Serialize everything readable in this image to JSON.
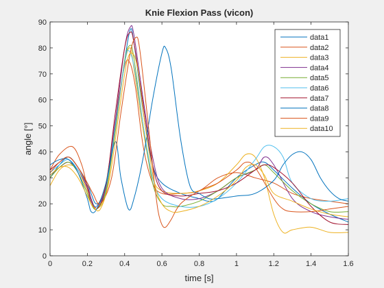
{
  "chart_data": {
    "type": "line",
    "title": "Knie Flexion Pass (vicon)",
    "xlabel": "time [s]",
    "ylabel": "angle [°]",
    "xlim": [
      0,
      1.6
    ],
    "ylim": [
      0,
      90
    ],
    "xticks": [
      0,
      0.2,
      0.4,
      0.6,
      0.8,
      1,
      1.2,
      1.4,
      1.6
    ],
    "yticks": [
      0,
      10,
      20,
      30,
      40,
      50,
      60,
      70,
      80,
      90
    ],
    "xtick_labels": [
      "0",
      "0.2",
      "0.4",
      "0.6",
      "0.8",
      "1",
      "1.2",
      "1.4",
      "1.6"
    ],
    "ytick_labels": [
      "0",
      "10",
      "20",
      "30",
      "40",
      "50",
      "60",
      "70",
      "80",
      "90"
    ],
    "grid": false,
    "legend_position": "top-right",
    "series": [
      {
        "name": "data1",
        "color": "#0072BD",
        "points": [
          [
            0,
            30
          ],
          [
            0.05,
            35
          ],
          [
            0.1,
            38
          ],
          [
            0.15,
            34
          ],
          [
            0.2,
            28
          ],
          [
            0.22,
            24
          ],
          [
            0.25,
            20
          ],
          [
            0.3,
            25
          ],
          [
            0.35,
            50
          ],
          [
            0.4,
            75
          ],
          [
            0.43,
            87
          ],
          [
            0.45,
            82
          ],
          [
            0.5,
            55
          ],
          [
            0.55,
            35
          ],
          [
            0.6,
            28
          ],
          [
            0.7,
            24
          ],
          [
            0.8,
            22
          ],
          [
            0.85,
            21
          ],
          [
            0.9,
            22
          ],
          [
            1.0,
            30
          ],
          [
            1.1,
            35
          ],
          [
            1.15,
            36
          ],
          [
            1.2,
            33
          ],
          [
            1.3,
            26
          ],
          [
            1.4,
            20
          ],
          [
            1.5,
            16
          ],
          [
            1.6,
            13
          ]
        ]
      },
      {
        "name": "data2",
        "color": "#D95319",
        "points": [
          [
            0,
            33
          ],
          [
            0.05,
            39
          ],
          [
            0.12,
            42
          ],
          [
            0.17,
            35
          ],
          [
            0.2,
            26
          ],
          [
            0.22,
            20
          ],
          [
            0.25,
            19
          ],
          [
            0.3,
            28
          ],
          [
            0.35,
            52
          ],
          [
            0.4,
            73
          ],
          [
            0.43,
            74
          ],
          [
            0.46,
            64
          ],
          [
            0.5,
            42
          ],
          [
            0.55,
            28
          ],
          [
            0.6,
            24
          ],
          [
            0.7,
            24
          ],
          [
            0.8,
            25
          ],
          [
            0.9,
            30
          ],
          [
            1.0,
            32
          ],
          [
            1.1,
            30
          ],
          [
            1.2,
            28
          ],
          [
            1.3,
            24
          ],
          [
            1.4,
            22
          ],
          [
            1.5,
            21
          ],
          [
            1.6,
            20
          ]
        ]
      },
      {
        "name": "data3",
        "color": "#EDB120",
        "points": [
          [
            0,
            27
          ],
          [
            0.05,
            33
          ],
          [
            0.1,
            35
          ],
          [
            0.15,
            33
          ],
          [
            0.2,
            25
          ],
          [
            0.22,
            21
          ],
          [
            0.25,
            18
          ],
          [
            0.3,
            24
          ],
          [
            0.35,
            48
          ],
          [
            0.4,
            74
          ],
          [
            0.43,
            80
          ],
          [
            0.45,
            72
          ],
          [
            0.5,
            48
          ],
          [
            0.55,
            30
          ],
          [
            0.6,
            25
          ],
          [
            0.7,
            24
          ],
          [
            0.8,
            25
          ],
          [
            0.9,
            28
          ],
          [
            1.0,
            35
          ],
          [
            1.05,
            39
          ],
          [
            1.1,
            38
          ],
          [
            1.15,
            30
          ],
          [
            1.2,
            16
          ],
          [
            1.25,
            9
          ],
          [
            1.3,
            10
          ],
          [
            1.4,
            11
          ],
          [
            1.5,
            9
          ],
          [
            1.6,
            9
          ]
        ]
      },
      {
        "name": "data4",
        "color": "#7E2F8E",
        "points": [
          [
            0,
            31
          ],
          [
            0.05,
            34
          ],
          [
            0.1,
            36
          ],
          [
            0.15,
            33
          ],
          [
            0.2,
            26
          ],
          [
            0.22,
            21
          ],
          [
            0.25,
            19
          ],
          [
            0.3,
            27
          ],
          [
            0.35,
            52
          ],
          [
            0.4,
            80
          ],
          [
            0.43,
            88
          ],
          [
            0.45,
            85
          ],
          [
            0.5,
            60
          ],
          [
            0.55,
            38
          ],
          [
            0.6,
            26
          ],
          [
            0.7,
            22
          ],
          [
            0.8,
            22
          ],
          [
            0.9,
            25
          ],
          [
            1.0,
            30
          ],
          [
            1.1,
            33
          ],
          [
            1.15,
            38
          ],
          [
            1.2,
            35
          ],
          [
            1.3,
            22
          ],
          [
            1.4,
            17
          ],
          [
            1.5,
            15
          ],
          [
            1.6,
            14
          ]
        ]
      },
      {
        "name": "data5",
        "color": "#77AC30",
        "points": [
          [
            0,
            30
          ],
          [
            0.05,
            34
          ],
          [
            0.1,
            36
          ],
          [
            0.15,
            32
          ],
          [
            0.2,
            24
          ],
          [
            0.22,
            20
          ],
          [
            0.25,
            18
          ],
          [
            0.3,
            25
          ],
          [
            0.35,
            48
          ],
          [
            0.4,
            75
          ],
          [
            0.43,
            81
          ],
          [
            0.45,
            76
          ],
          [
            0.5,
            50
          ],
          [
            0.55,
            28
          ],
          [
            0.6,
            20
          ],
          [
            0.65,
            19
          ],
          [
            0.7,
            19
          ],
          [
            0.8,
            21
          ],
          [
            0.9,
            25
          ],
          [
            1.0,
            30
          ],
          [
            1.1,
            33
          ],
          [
            1.15,
            35
          ],
          [
            1.2,
            32
          ],
          [
            1.3,
            25
          ],
          [
            1.4,
            20
          ],
          [
            1.5,
            17
          ],
          [
            1.6,
            17
          ]
        ]
      },
      {
        "name": "data6",
        "color": "#4DBEEE",
        "points": [
          [
            0,
            32
          ],
          [
            0.05,
            35
          ],
          [
            0.1,
            37
          ],
          [
            0.15,
            33
          ],
          [
            0.2,
            27
          ],
          [
            0.22,
            22
          ],
          [
            0.25,
            19
          ],
          [
            0.3,
            26
          ],
          [
            0.35,
            50
          ],
          [
            0.4,
            74
          ],
          [
            0.42,
            79
          ],
          [
            0.45,
            73
          ],
          [
            0.5,
            50
          ],
          [
            0.55,
            30
          ],
          [
            0.6,
            22
          ],
          [
            0.7,
            19
          ],
          [
            0.8,
            19
          ],
          [
            0.9,
            22
          ],
          [
            1.0,
            28
          ],
          [
            1.1,
            37
          ],
          [
            1.15,
            42
          ],
          [
            1.2,
            42
          ],
          [
            1.25,
            38
          ],
          [
            1.3,
            28
          ],
          [
            1.4,
            22
          ],
          [
            1.5,
            21
          ],
          [
            1.6,
            22
          ]
        ]
      },
      {
        "name": "data7",
        "color": "#A2142F",
        "points": [
          [
            0,
            33
          ],
          [
            0.05,
            36
          ],
          [
            0.1,
            38
          ],
          [
            0.15,
            34
          ],
          [
            0.2,
            27
          ],
          [
            0.22,
            22
          ],
          [
            0.25,
            18
          ],
          [
            0.3,
            27
          ],
          [
            0.35,
            55
          ],
          [
            0.4,
            80
          ],
          [
            0.43,
            86
          ],
          [
            0.45,
            82
          ],
          [
            0.5,
            58
          ],
          [
            0.55,
            35
          ],
          [
            0.6,
            25
          ],
          [
            0.7,
            23
          ],
          [
            0.8,
            24
          ],
          [
            0.9,
            25
          ],
          [
            1.0,
            28
          ],
          [
            1.1,
            33
          ],
          [
            1.15,
            35
          ],
          [
            1.2,
            34
          ],
          [
            1.3,
            28
          ],
          [
            1.4,
            19
          ],
          [
            1.5,
            13
          ],
          [
            1.6,
            12
          ]
        ]
      },
      {
        "name": "data8",
        "color": "#0072BD",
        "points": [
          [
            0,
            35
          ],
          [
            0.05,
            37
          ],
          [
            0.1,
            37
          ],
          [
            0.15,
            32
          ],
          [
            0.2,
            22
          ],
          [
            0.22,
            17
          ],
          [
            0.25,
            18
          ],
          [
            0.3,
            28
          ],
          [
            0.35,
            44
          ],
          [
            0.38,
            30
          ],
          [
            0.42,
            18
          ],
          [
            0.45,
            22
          ],
          [
            0.5,
            38
          ],
          [
            0.55,
            60
          ],
          [
            0.6,
            78
          ],
          [
            0.62,
            80
          ],
          [
            0.65,
            72
          ],
          [
            0.7,
            45
          ],
          [
            0.75,
            27
          ],
          [
            0.8,
            24
          ],
          [
            0.85,
            22
          ],
          [
            0.9,
            22
          ],
          [
            1.0,
            23
          ],
          [
            1.1,
            24
          ],
          [
            1.2,
            29
          ],
          [
            1.25,
            35
          ],
          [
            1.3,
            39
          ],
          [
            1.35,
            40
          ],
          [
            1.4,
            37
          ],
          [
            1.45,
            30
          ],
          [
            1.5,
            25
          ],
          [
            1.55,
            22
          ],
          [
            1.6,
            21
          ]
        ]
      },
      {
        "name": "data9",
        "color": "#D95319",
        "points": [
          [
            0,
            32
          ],
          [
            0.05,
            36
          ],
          [
            0.1,
            38
          ],
          [
            0.15,
            34
          ],
          [
            0.2,
            28
          ],
          [
            0.23,
            24
          ],
          [
            0.27,
            20
          ],
          [
            0.33,
            30
          ],
          [
            0.38,
            55
          ],
          [
            0.43,
            78
          ],
          [
            0.46,
            84
          ],
          [
            0.48,
            80
          ],
          [
            0.52,
            55
          ],
          [
            0.56,
            28
          ],
          [
            0.58,
            17
          ],
          [
            0.6,
            12
          ],
          [
            0.62,
            11
          ],
          [
            0.65,
            14
          ],
          [
            0.7,
            20
          ],
          [
            0.8,
            25
          ],
          [
            0.9,
            28
          ],
          [
            1.0,
            33
          ],
          [
            1.05,
            36
          ],
          [
            1.1,
            34
          ],
          [
            1.2,
            22
          ],
          [
            1.25,
            18
          ],
          [
            1.3,
            17
          ],
          [
            1.4,
            17
          ],
          [
            1.5,
            18
          ],
          [
            1.6,
            19
          ]
        ]
      },
      {
        "name": "data10",
        "color": "#EDB120",
        "points": [
          [
            0,
            31
          ],
          [
            0.05,
            34
          ],
          [
            0.1,
            34
          ],
          [
            0.15,
            30
          ],
          [
            0.2,
            23
          ],
          [
            0.23,
            19
          ],
          [
            0.27,
            18
          ],
          [
            0.32,
            30
          ],
          [
            0.37,
            55
          ],
          [
            0.41,
            74
          ],
          [
            0.44,
            78
          ],
          [
            0.47,
            72
          ],
          [
            0.51,
            50
          ],
          [
            0.56,
            28
          ],
          [
            0.6,
            20
          ],
          [
            0.65,
            17
          ],
          [
            0.7,
            17
          ],
          [
            0.8,
            19
          ],
          [
            0.9,
            23
          ],
          [
            1.0,
            29
          ],
          [
            1.05,
            34
          ],
          [
            1.1,
            35
          ],
          [
            1.15,
            31
          ],
          [
            1.2,
            24
          ],
          [
            1.3,
            21
          ],
          [
            1.4,
            18
          ],
          [
            1.5,
            16
          ],
          [
            1.6,
            15
          ]
        ]
      }
    ]
  }
}
